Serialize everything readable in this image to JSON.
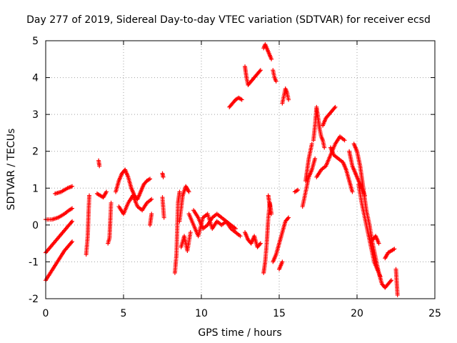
{
  "chart_data": {
    "type": "scatter",
    "title": "Day 277 of 2019, Sidereal Day-to-day VTEC variation (SDTVAR) for receiver ecsd",
    "xlabel": "GPS time / hours",
    "ylabel": "SDTVAR / TECUs",
    "xlim": [
      0,
      25
    ],
    "ylim": [
      -2,
      5
    ],
    "xticks": [
      "0",
      "5",
      "10",
      "15",
      "20",
      "25"
    ],
    "yticks": [
      "-2",
      "-1",
      "0",
      "1",
      "2",
      "3",
      "4",
      "5"
    ],
    "grid": true,
    "marker": "+",
    "color": "#ff0000",
    "segments": [
      [
        [
          0.0,
          -1.5
        ],
        [
          0.3,
          -1.3
        ],
        [
          0.6,
          -1.1
        ],
        [
          0.9,
          -0.9
        ],
        [
          1.2,
          -0.7
        ],
        [
          1.5,
          -0.55
        ],
        [
          1.7,
          -0.45
        ]
      ],
      [
        [
          0.0,
          -0.75
        ],
        [
          0.3,
          -0.6
        ],
        [
          0.6,
          -0.45
        ],
        [
          0.9,
          -0.3
        ],
        [
          1.2,
          -0.15
        ],
        [
          1.5,
          0.0
        ],
        [
          1.7,
          0.1
        ]
      ],
      [
        [
          0.0,
          0.15
        ],
        [
          0.4,
          0.15
        ],
        [
          0.8,
          0.2
        ],
        [
          1.2,
          0.3
        ],
        [
          1.5,
          0.4
        ],
        [
          1.7,
          0.45
        ]
      ],
      [
        [
          0.6,
          0.85
        ],
        [
          1.0,
          0.9
        ],
        [
          1.4,
          1.0
        ],
        [
          1.7,
          1.05
        ]
      ],
      [
        [
          2.6,
          -0.8
        ],
        [
          2.7,
          -0.3
        ],
        [
          2.75,
          0.3
        ],
        [
          2.8,
          0.8
        ]
      ],
      [
        [
          3.3,
          0.85
        ],
        [
          3.5,
          0.8
        ],
        [
          3.7,
          0.75
        ],
        [
          3.9,
          0.9
        ]
      ],
      [
        [
          3.4,
          1.75
        ],
        [
          3.45,
          1.6
        ]
      ],
      [
        [
          4.0,
          -0.5
        ],
        [
          4.1,
          -0.35
        ],
        [
          4.2,
          0.6
        ]
      ],
      [
        [
          4.5,
          0.9
        ],
        [
          4.7,
          1.2
        ],
        [
          4.9,
          1.4
        ],
        [
          5.1,
          1.5
        ],
        [
          5.3,
          1.3
        ],
        [
          5.5,
          1.0
        ],
        [
          5.7,
          0.8
        ],
        [
          5.9,
          0.7
        ],
        [
          6.1,
          0.9
        ],
        [
          6.3,
          1.1
        ],
        [
          6.5,
          1.2
        ],
        [
          6.7,
          1.25
        ]
      ],
      [
        [
          4.7,
          0.5
        ],
        [
          5.0,
          0.3
        ],
        [
          5.3,
          0.6
        ],
        [
          5.6,
          0.8
        ],
        [
          5.9,
          0.5
        ],
        [
          6.2,
          0.4
        ],
        [
          6.5,
          0.6
        ],
        [
          6.8,
          0.7
        ]
      ],
      [
        [
          6.7,
          0.0
        ],
        [
          6.8,
          0.3
        ]
      ],
      [
        [
          7.5,
          1.4
        ],
        [
          7.55,
          1.3
        ]
      ],
      [
        [
          7.5,
          0.75
        ],
        [
          7.6,
          0.2
        ]
      ],
      [
        [
          8.3,
          -1.3
        ],
        [
          8.4,
          -0.8
        ],
        [
          8.5,
          0.6
        ],
        [
          8.6,
          0.9
        ]
      ],
      [
        [
          8.6,
          0.1
        ],
        [
          8.8,
          0.8
        ],
        [
          9.0,
          1.05
        ],
        [
          9.2,
          0.9
        ]
      ],
      [
        [
          8.7,
          -0.6
        ],
        [
          8.9,
          -0.3
        ],
        [
          9.1,
          -0.7
        ],
        [
          9.3,
          -0.2
        ]
      ],
      [
        [
          9.2,
          0.3
        ],
        [
          9.5,
          0.0
        ],
        [
          9.8,
          -0.3
        ],
        [
          10.1,
          0.2
        ],
        [
          10.4,
          0.3
        ],
        [
          10.7,
          -0.1
        ],
        [
          11.0,
          0.1
        ],
        [
          11.3,
          0.0
        ],
        [
          11.6,
          0.1
        ],
        [
          11.9,
          -0.1
        ],
        [
          12.2,
          -0.2
        ],
        [
          12.5,
          -0.3
        ]
      ],
      [
        [
          9.5,
          0.4
        ],
        [
          9.8,
          0.2
        ],
        [
          10.1,
          -0.1
        ],
        [
          10.4,
          0.0
        ],
        [
          10.7,
          0.2
        ],
        [
          11.0,
          0.3
        ],
        [
          11.3,
          0.2
        ],
        [
          11.6,
          0.1
        ],
        [
          11.9,
          0.0
        ],
        [
          12.2,
          -0.1
        ]
      ],
      [
        [
          11.8,
          3.2
        ],
        [
          12.0,
          3.3
        ],
        [
          12.2,
          3.4
        ],
        [
          12.4,
          3.45
        ],
        [
          12.6,
          3.4
        ]
      ],
      [
        [
          12.8,
          4.3
        ],
        [
          12.9,
          4.0
        ],
        [
          13.0,
          3.8
        ],
        [
          13.2,
          3.9
        ],
        [
          13.4,
          4.0
        ],
        [
          13.6,
          4.1
        ],
        [
          13.8,
          4.2
        ]
      ],
      [
        [
          12.8,
          -0.2
        ],
        [
          13.0,
          -0.4
        ],
        [
          13.2,
          -0.5
        ],
        [
          13.4,
          -0.3
        ],
        [
          13.6,
          -0.6
        ],
        [
          13.8,
          -0.5
        ]
      ],
      [
        [
          14.0,
          4.8
        ],
        [
          14.1,
          4.9
        ],
        [
          14.2,
          4.8
        ],
        [
          14.3,
          4.7
        ],
        [
          14.4,
          4.6
        ],
        [
          14.5,
          4.5
        ]
      ],
      [
        [
          14.0,
          -1.3
        ],
        [
          14.1,
          -1.0
        ],
        [
          14.2,
          -0.5
        ],
        [
          14.3,
          0.2
        ],
        [
          14.4,
          0.6
        ],
        [
          14.5,
          0.3
        ]
      ],
      [
        [
          14.3,
          0.8
        ],
        [
          14.4,
          0.5
        ]
      ],
      [
        [
          14.6,
          4.2
        ],
        [
          14.7,
          4.0
        ],
        [
          14.8,
          3.9
        ]
      ],
      [
        [
          14.6,
          -1.0
        ],
        [
          14.8,
          -0.8
        ],
        [
          15.0,
          -0.5
        ],
        [
          15.2,
          -0.2
        ],
        [
          15.4,
          0.1
        ],
        [
          15.6,
          0.2
        ]
      ],
      [
        [
          15.0,
          -1.2
        ],
        [
          15.2,
          -1.0
        ]
      ],
      [
        [
          15.2,
          3.3
        ],
        [
          15.3,
          3.5
        ],
        [
          15.4,
          3.7
        ],
        [
          15.5,
          3.6
        ],
        [
          15.6,
          3.4
        ]
      ],
      [
        [
          16.0,
          0.9
        ],
        [
          16.2,
          0.95
        ]
      ],
      [
        [
          16.5,
          0.5
        ],
        [
          16.7,
          0.9
        ],
        [
          16.9,
          1.3
        ],
        [
          17.1,
          1.5
        ],
        [
          17.3,
          1.8
        ]
      ],
      [
        [
          16.7,
          1.2
        ],
        [
          16.9,
          1.8
        ],
        [
          17.1,
          2.2
        ]
      ],
      [
        [
          17.2,
          2.3
        ],
        [
          17.3,
          2.7
        ],
        [
          17.4,
          3.2
        ],
        [
          17.5,
          2.9
        ],
        [
          17.6,
          2.6
        ],
        [
          17.7,
          2.4
        ],
        [
          17.8,
          2.3
        ],
        [
          17.9,
          2.1
        ]
      ],
      [
        [
          17.8,
          2.7
        ],
        [
          18.0,
          2.9
        ],
        [
          18.2,
          3.0
        ],
        [
          18.4,
          3.1
        ],
        [
          18.6,
          3.2
        ]
      ],
      [
        [
          17.4,
          1.3
        ],
        [
          17.7,
          1.5
        ],
        [
          18.0,
          1.6
        ],
        [
          18.3,
          1.9
        ],
        [
          18.6,
          2.2
        ],
        [
          18.9,
          2.4
        ],
        [
          19.2,
          2.3
        ]
      ],
      [
        [
          18.3,
          2.1
        ],
        [
          18.5,
          1.9
        ],
        [
          18.8,
          1.8
        ],
        [
          19.1,
          1.7
        ],
        [
          19.3,
          1.5
        ],
        [
          19.5,
          1.2
        ],
        [
          19.7,
          0.9
        ]
      ],
      [
        [
          19.5,
          2.0
        ],
        [
          19.7,
          1.6
        ],
        [
          19.9,
          1.4
        ],
        [
          20.1,
          1.2
        ],
        [
          20.3,
          1.0
        ],
        [
          20.5,
          0.8
        ]
      ],
      [
        [
          19.8,
          2.2
        ],
        [
          20.0,
          2.0
        ],
        [
          20.2,
          1.6
        ],
        [
          20.4,
          1.0
        ],
        [
          20.6,
          0.4
        ],
        [
          20.8,
          0.0
        ],
        [
          21.0,
          -0.5
        ],
        [
          21.2,
          -0.9
        ],
        [
          21.4,
          -1.3
        ],
        [
          21.6,
          -1.6
        ],
        [
          21.8,
          -1.7
        ],
        [
          22.0,
          -1.6
        ],
        [
          22.2,
          -1.5
        ]
      ],
      [
        [
          20.1,
          1.1
        ],
        [
          20.3,
          0.6
        ],
        [
          20.5,
          0.2
        ],
        [
          20.7,
          -0.2
        ],
        [
          20.9,
          -0.6
        ],
        [
          21.1,
          -1.0
        ],
        [
          21.3,
          -1.2
        ],
        [
          21.5,
          -1.4
        ]
      ],
      [
        [
          21.0,
          -0.4
        ],
        [
          21.2,
          -0.3
        ],
        [
          21.4,
          -0.5
        ]
      ],
      [
        [
          21.8,
          -0.9
        ],
        [
          22.0,
          -0.75
        ],
        [
          22.2,
          -0.7
        ],
        [
          22.4,
          -0.65
        ]
      ],
      [
        [
          22.5,
          -1.2
        ],
        [
          22.6,
          -1.9
        ]
      ]
    ]
  }
}
